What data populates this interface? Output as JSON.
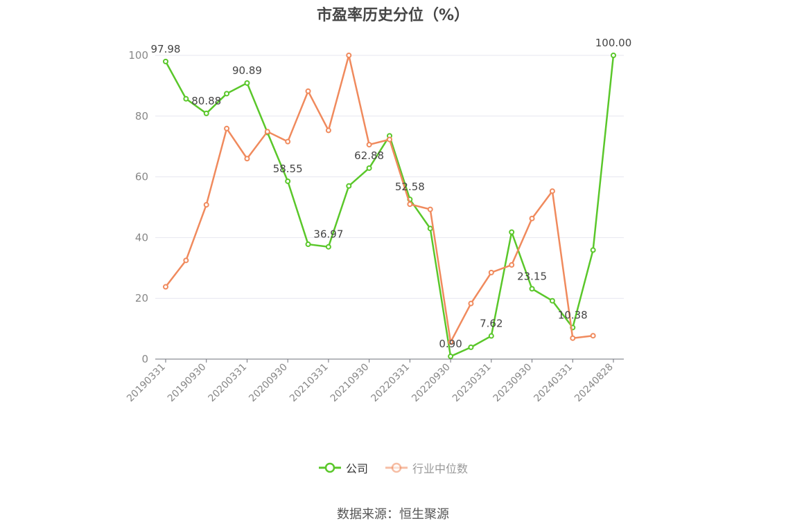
{
  "chart_data": {
    "type": "line",
    "title": "市盈率历史分位（%）",
    "xlabel": "",
    "ylabel": "",
    "ylim": [
      0,
      100
    ],
    "yticks": [
      0,
      20,
      40,
      60,
      80,
      100
    ],
    "grid": true,
    "legend_position": "bottom",
    "x": [
      "20190331",
      "20190630",
      "20190930",
      "20191231",
      "20200331",
      "20200630",
      "20200930",
      "20201231",
      "20210331",
      "20210630",
      "20210930",
      "20211231",
      "20220331",
      "20220630",
      "20220930",
      "20221231",
      "20230331",
      "20230630",
      "20230930",
      "20231231",
      "20240331",
      "20240630",
      "20240828"
    ],
    "x_tick_labels": [
      "20190331",
      "20190930",
      "20200331",
      "20200930",
      "20210331",
      "20210930",
      "20220331",
      "20220930",
      "20230331",
      "20230930",
      "20240331",
      "20240828"
    ],
    "series": [
      {
        "name": "公司",
        "color": "#5ac72a",
        "values": [
          97.98,
          85.7,
          80.88,
          87.4,
          90.89,
          74.6,
          58.55,
          37.8,
          36.97,
          57.0,
          62.88,
          73.5,
          52.58,
          43.0,
          0.9,
          3.9,
          7.62,
          41.8,
          23.15,
          19.2,
          10.38,
          35.9,
          100.0
        ],
        "labeled_points": [
          {
            "index": 0,
            "text": "97.98"
          },
          {
            "index": 2,
            "text": "80.88"
          },
          {
            "index": 4,
            "text": "90.89"
          },
          {
            "index": 6,
            "text": "58.55"
          },
          {
            "index": 8,
            "text": "36.97"
          },
          {
            "index": 10,
            "text": "62.88"
          },
          {
            "index": 12,
            "text": "52.58"
          },
          {
            "index": 14,
            "text": "0.90"
          },
          {
            "index": 16,
            "text": "7.62"
          },
          {
            "index": 18,
            "text": "23.15"
          },
          {
            "index": 20,
            "text": "10.38"
          },
          {
            "index": 22,
            "text": "100.00"
          }
        ]
      },
      {
        "name": "行业中位数",
        "color": "#f08a5d",
        "values": [
          23.8,
          32.5,
          50.8,
          75.9,
          66.0,
          74.9,
          71.6,
          88.2,
          75.3,
          100.0,
          70.6,
          72.3,
          51.0,
          49.3,
          5.6,
          18.3,
          28.5,
          31.0,
          46.3,
          55.3,
          6.9,
          7.7,
          null
        ]
      }
    ]
  },
  "source_note": "数据来源：恒生聚源"
}
